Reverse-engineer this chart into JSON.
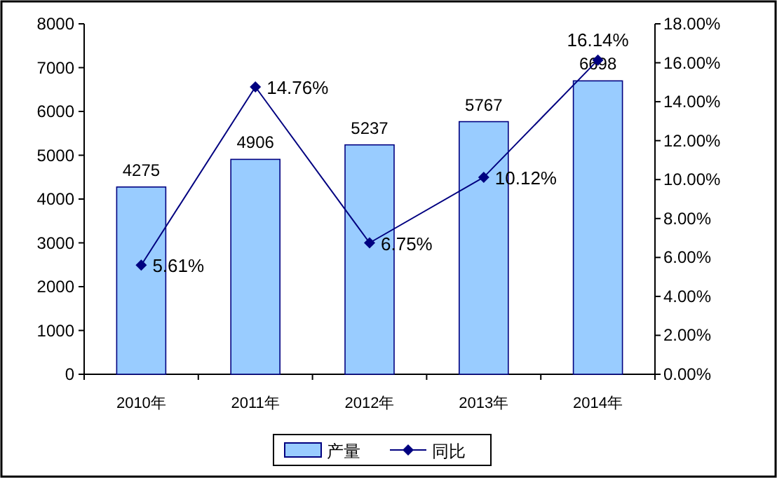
{
  "chart_data": {
    "type": "bar",
    "categories": [
      "2010年",
      "2011年",
      "2012年",
      "2013年",
      "2014年"
    ],
    "series": [
      {
        "name": "产量",
        "color": "#99ccff",
        "values": [
          4275,
          4906,
          5237,
          5767,
          6698
        ],
        "value_labels": [
          "4275",
          "4906",
          "5237",
          "5767",
          "6698"
        ]
      },
      {
        "name": "同比",
        "type": "line",
        "axis": "y2",
        "color": "#000080",
        "marker": "diamond",
        "values": [
          5.61,
          14.76,
          6.75,
          10.12,
          16.14
        ],
        "value_labels": [
          "5.61%",
          "14.76%",
          "6.75%",
          "10.12%",
          "16.14%"
        ]
      }
    ],
    "ylim": [
      0,
      8000
    ],
    "yticks": [
      0,
      1000,
      2000,
      3000,
      4000,
      5000,
      6000,
      7000,
      8000
    ],
    "y2lim": [
      0,
      18
    ],
    "y2ticks": [
      {
        "value": 0,
        "label": "0.00%"
      },
      {
        "value": 2,
        "label": "2.00%"
      },
      {
        "value": 4,
        "label": "4.00%"
      },
      {
        "value": 6,
        "label": "6.00%"
      },
      {
        "value": 8,
        "label": "8.00%"
      },
      {
        "value": 10,
        "label": "10.00%"
      },
      {
        "value": 12,
        "label": "12.00%"
      },
      {
        "value": 14,
        "label": "14.00%"
      },
      {
        "value": 16,
        "label": "16.00%"
      },
      {
        "value": 18,
        "label": "18.00%"
      }
    ],
    "legend": "bottom"
  }
}
